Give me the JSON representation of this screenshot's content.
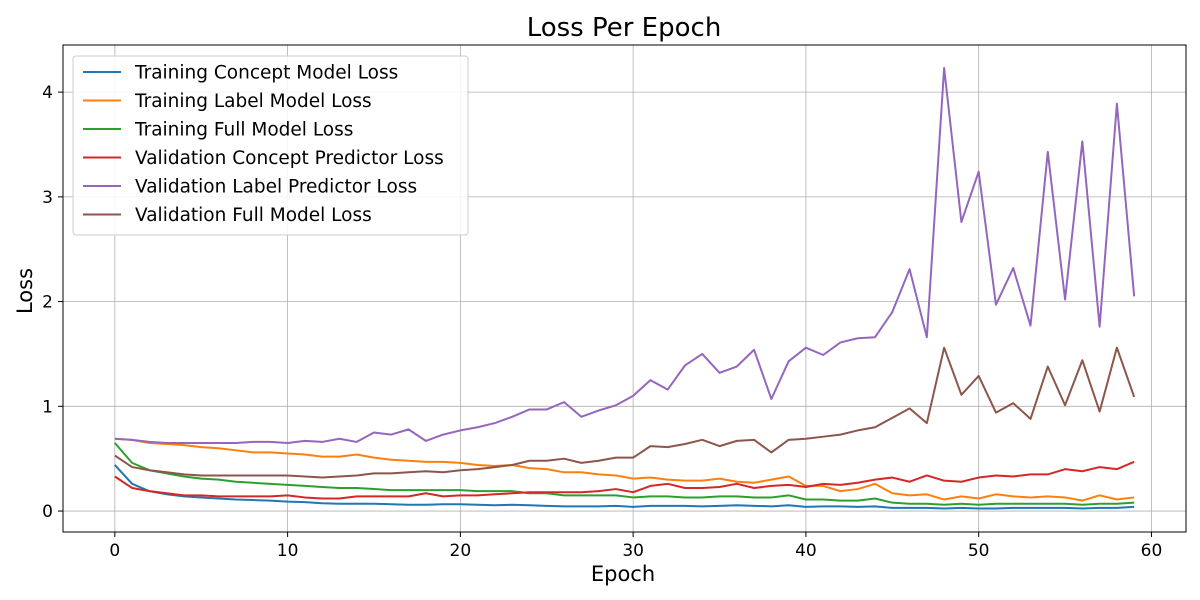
{
  "chart_data": {
    "type": "line",
    "title": "Loss Per Epoch",
    "xlabel": "Epoch",
    "ylabel": "Loss",
    "xlim": [
      -3,
      62
    ],
    "ylim": [
      -0.2,
      4.45
    ],
    "xticks": [
      0,
      10,
      20,
      30,
      40,
      50,
      60
    ],
    "yticks": [
      0,
      1,
      2,
      3,
      4
    ],
    "grid": true,
    "legend_position": "top-left",
    "x": [
      0,
      1,
      2,
      3,
      4,
      5,
      6,
      7,
      8,
      9,
      10,
      11,
      12,
      13,
      14,
      15,
      16,
      17,
      18,
      19,
      20,
      21,
      22,
      23,
      24,
      25,
      26,
      27,
      28,
      29,
      30,
      31,
      32,
      33,
      34,
      35,
      36,
      37,
      38,
      39,
      40,
      41,
      42,
      43,
      44,
      45,
      46,
      47,
      48,
      49,
      50,
      51,
      52,
      53,
      54,
      55,
      56,
      57,
      58,
      59
    ],
    "series": [
      {
        "name": "Training Concept Model Loss",
        "color": "#1f77b4",
        "values": [
          0.44,
          0.26,
          0.19,
          0.16,
          0.14,
          0.13,
          0.12,
          0.11,
          0.105,
          0.1,
          0.09,
          0.085,
          0.075,
          0.07,
          0.07,
          0.07,
          0.065,
          0.06,
          0.06,
          0.065,
          0.065,
          0.06,
          0.055,
          0.06,
          0.055,
          0.05,
          0.045,
          0.045,
          0.045,
          0.05,
          0.04,
          0.05,
          0.05,
          0.05,
          0.045,
          0.05,
          0.055,
          0.05,
          0.045,
          0.055,
          0.04,
          0.045,
          0.045,
          0.04,
          0.045,
          0.03,
          0.03,
          0.03,
          0.025,
          0.03,
          0.025,
          0.025,
          0.03,
          0.03,
          0.03,
          0.03,
          0.025,
          0.03,
          0.03,
          0.04
        ]
      },
      {
        "name": "Training Label Model Loss",
        "color": "#ff7f0e",
        "values": [
          0.69,
          0.68,
          0.65,
          0.64,
          0.63,
          0.61,
          0.6,
          0.58,
          0.56,
          0.56,
          0.55,
          0.54,
          0.52,
          0.52,
          0.54,
          0.51,
          0.49,
          0.48,
          0.47,
          0.47,
          0.46,
          0.44,
          0.43,
          0.44,
          0.41,
          0.4,
          0.37,
          0.37,
          0.35,
          0.34,
          0.31,
          0.32,
          0.3,
          0.29,
          0.29,
          0.31,
          0.28,
          0.27,
          0.3,
          0.33,
          0.24,
          0.24,
          0.19,
          0.21,
          0.26,
          0.17,
          0.15,
          0.16,
          0.11,
          0.14,
          0.12,
          0.16,
          0.14,
          0.13,
          0.14,
          0.13,
          0.1,
          0.15,
          0.11,
          0.13
        ]
      },
      {
        "name": "Training Full Model Loss",
        "color": "#2ca02c",
        "values": [
          0.65,
          0.46,
          0.39,
          0.36,
          0.33,
          0.31,
          0.3,
          0.28,
          0.27,
          0.26,
          0.25,
          0.24,
          0.23,
          0.22,
          0.22,
          0.21,
          0.2,
          0.2,
          0.2,
          0.2,
          0.2,
          0.19,
          0.19,
          0.19,
          0.17,
          0.17,
          0.15,
          0.15,
          0.15,
          0.15,
          0.13,
          0.14,
          0.14,
          0.13,
          0.13,
          0.14,
          0.14,
          0.13,
          0.13,
          0.15,
          0.11,
          0.11,
          0.1,
          0.1,
          0.12,
          0.08,
          0.07,
          0.07,
          0.06,
          0.07,
          0.06,
          0.07,
          0.07,
          0.07,
          0.07,
          0.07,
          0.06,
          0.07,
          0.07,
          0.08
        ]
      },
      {
        "name": "Validation Concept Predictor Loss",
        "color": "#d62728",
        "values": [
          0.33,
          0.22,
          0.19,
          0.17,
          0.15,
          0.15,
          0.14,
          0.14,
          0.14,
          0.14,
          0.15,
          0.13,
          0.12,
          0.12,
          0.14,
          0.14,
          0.14,
          0.14,
          0.17,
          0.14,
          0.15,
          0.15,
          0.16,
          0.17,
          0.18,
          0.18,
          0.18,
          0.18,
          0.19,
          0.21,
          0.18,
          0.24,
          0.26,
          0.22,
          0.22,
          0.23,
          0.26,
          0.22,
          0.24,
          0.25,
          0.23,
          0.26,
          0.25,
          0.27,
          0.3,
          0.32,
          0.28,
          0.34,
          0.29,
          0.28,
          0.32,
          0.34,
          0.33,
          0.35,
          0.35,
          0.4,
          0.38,
          0.42,
          0.4,
          0.47
        ]
      },
      {
        "name": "Validation Label Predictor Loss",
        "color": "#9467bd",
        "values": [
          0.69,
          0.68,
          0.66,
          0.65,
          0.65,
          0.65,
          0.65,
          0.65,
          0.66,
          0.66,
          0.65,
          0.67,
          0.66,
          0.69,
          0.66,
          0.75,
          0.73,
          0.78,
          0.67,
          0.73,
          0.77,
          0.8,
          0.84,
          0.9,
          0.97,
          0.97,
          1.04,
          0.9,
          0.96,
          1.01,
          1.1,
          1.25,
          1.16,
          1.39,
          1.5,
          1.32,
          1.38,
          1.54,
          1.07,
          1.43,
          1.56,
          1.49,
          1.61,
          1.65,
          1.66,
          1.9,
          2.31,
          1.66,
          4.23,
          2.76,
          3.24,
          1.97,
          2.32,
          1.77,
          3.43,
          2.02,
          3.53,
          1.76,
          3.89,
          2.05
        ]
      },
      {
        "name": "Validation Full Model Loss",
        "color": "#8c564b",
        "values": [
          0.53,
          0.42,
          0.39,
          0.37,
          0.35,
          0.34,
          0.34,
          0.34,
          0.34,
          0.34,
          0.34,
          0.33,
          0.32,
          0.33,
          0.34,
          0.36,
          0.36,
          0.37,
          0.38,
          0.37,
          0.39,
          0.4,
          0.42,
          0.44,
          0.48,
          0.48,
          0.5,
          0.46,
          0.48,
          0.51,
          0.51,
          0.62,
          0.61,
          0.64,
          0.68,
          0.62,
          0.67,
          0.68,
          0.56,
          0.68,
          0.69,
          0.71,
          0.73,
          0.77,
          0.8,
          0.89,
          0.98,
          0.84,
          1.56,
          1.11,
          1.29,
          0.94,
          1.03,
          0.88,
          1.38,
          1.01,
          1.44,
          0.95,
          1.56,
          1.09
        ]
      }
    ]
  }
}
